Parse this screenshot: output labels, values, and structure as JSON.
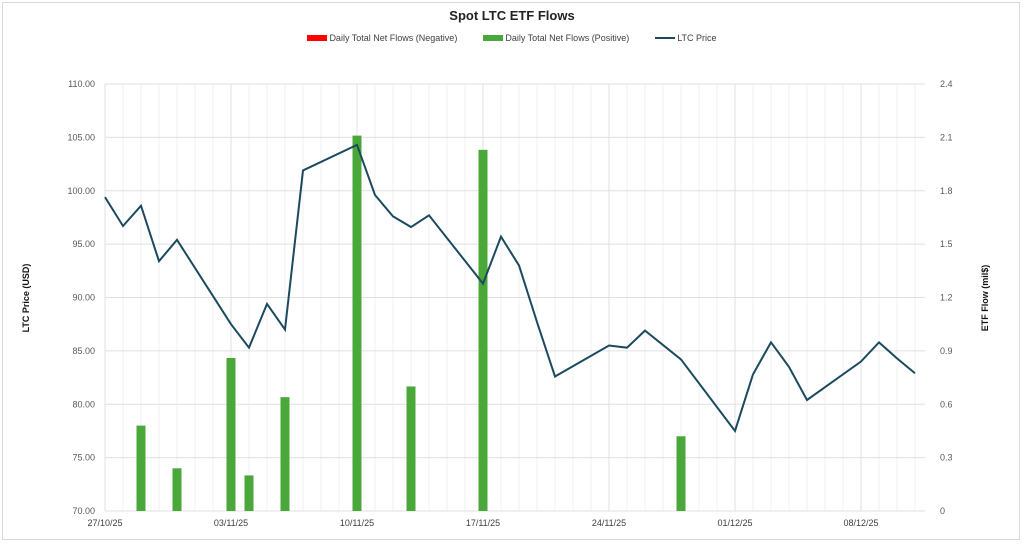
{
  "chart": {
    "title": "Spot LTC ETF Flows",
    "legend": [
      {
        "label": "Daily Total Net Flows (Negative)",
        "color": "#ff0000",
        "kind": "bar"
      },
      {
        "label": "Daily Total Net Flows (Positive)",
        "color": "#4aa83a",
        "kind": "bar"
      },
      {
        "label": "LTC Price",
        "color": "#1b4a5e",
        "kind": "line"
      }
    ],
    "ylabel_left": "LTC Price (USD)",
    "ylabel_right": "ETF Flow (mil$)",
    "left_ticks": [
      "70.00",
      "75.00",
      "80.00",
      "85.00",
      "90.00",
      "95.00",
      "100.00",
      "105.00",
      "110.00"
    ],
    "right_ticks": [
      "0",
      "0.3",
      "0.6",
      "0.9",
      "1.2",
      "1.5",
      "1.8",
      "2.1",
      "2.4"
    ],
    "x_ticks": [
      "27/10/25",
      "03/11/25",
      "10/11/25",
      "17/11/25",
      "24/11/25",
      "01/12/25",
      "08/12/25"
    ]
  },
  "chart_data": {
    "type": "bar+line",
    "title": "Spot LTC ETF Flows",
    "xlabel": "",
    "ylabel": "LTC Price (USD)",
    "y2label": "ETF Flow (mil$)",
    "ylim": [
      70,
      110
    ],
    "y2lim": [
      0,
      2.4
    ],
    "x_start": "27/10/25",
    "x_tick_labels": [
      "27/10/25",
      "03/11/25",
      "10/11/25",
      "17/11/25",
      "24/11/25",
      "01/12/25",
      "08/12/25"
    ],
    "legend_position": "top",
    "grid": true,
    "series": [
      {
        "name": "LTC Price",
        "type": "line",
        "axis": "left",
        "color": "#1b4a5e",
        "x": [
          "27/10",
          "28/10",
          "29/10",
          "30/10",
          "31/10",
          "03/11",
          "04/11",
          "05/11",
          "06/11",
          "07/11",
          "10/11",
          "11/11",
          "12/11",
          "13/11",
          "14/11",
          "17/11",
          "18/11",
          "19/11",
          "20/11",
          "21/11",
          "24/11",
          "25/11",
          "26/11",
          "28/11",
          "01/12",
          "02/12",
          "03/12",
          "04/12",
          "05/12",
          "08/12",
          "09/12",
          "10/12",
          "11/12"
        ],
        "day_index": [
          0,
          1,
          2,
          3,
          4,
          7,
          8,
          9,
          10,
          11,
          14,
          15,
          16,
          17,
          18,
          21,
          22,
          23,
          24,
          25,
          28,
          29,
          30,
          32,
          35,
          36,
          37,
          38,
          39,
          42,
          43,
          44,
          45
        ],
        "values": [
          99.4,
          96.7,
          98.6,
          93.4,
          95.4,
          87.5,
          85.3,
          89.4,
          87.0,
          101.9,
          104.3,
          99.6,
          97.6,
          96.6,
          97.7,
          91.3,
          95.7,
          93.0,
          87.7,
          82.6,
          85.5,
          85.3,
          86.9,
          84.2,
          77.5,
          82.8,
          85.8,
          83.5,
          80.4,
          84.0,
          85.8,
          84.3,
          82.9
        ]
      },
      {
        "name": "Daily Total Net Flows (Positive)",
        "type": "bar",
        "axis": "right",
        "color": "#4aa83a",
        "x": [
          "29/10",
          "31/10",
          "03/11",
          "04/11",
          "06/11",
          "10/11",
          "13/11",
          "17/11",
          "28/11"
        ],
        "day_index": [
          2,
          4,
          7,
          8,
          10,
          14,
          17,
          21,
          32
        ],
        "values": [
          0.48,
          0.24,
          0.86,
          0.2,
          0.64,
          2.11,
          0.7,
          2.03,
          0.42
        ]
      },
      {
        "name": "Daily Total Net Flows (Negative)",
        "type": "bar",
        "axis": "right",
        "color": "#ff0000",
        "x": [],
        "values": []
      }
    ]
  }
}
